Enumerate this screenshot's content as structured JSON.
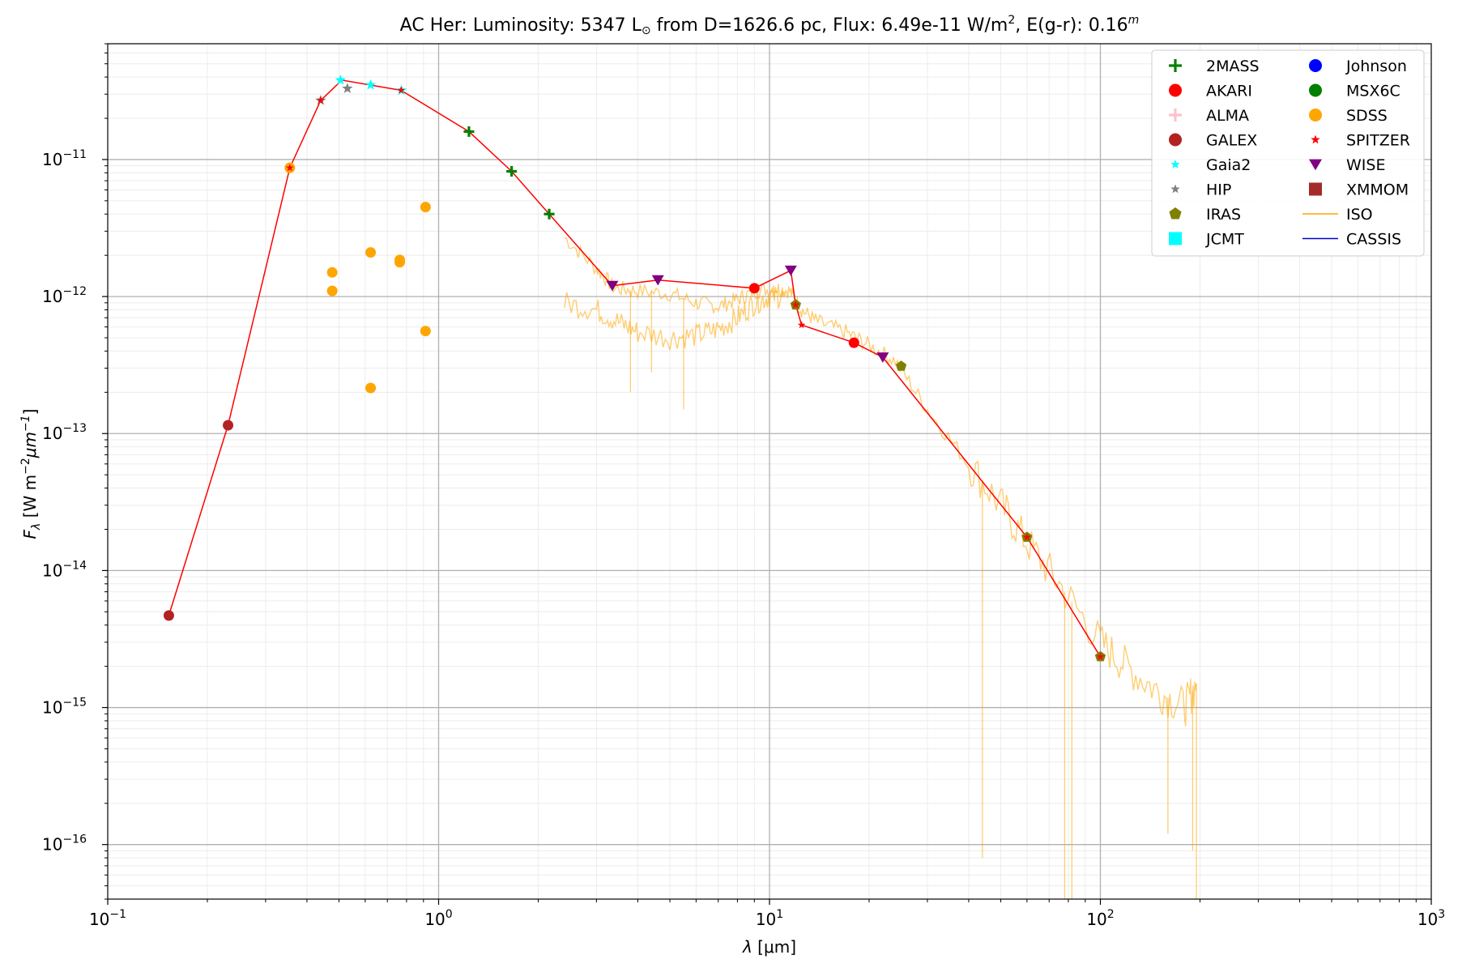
{
  "chart_data": {
    "type": "scatter",
    "title": {
      "prefix": "AC Her:  Luminosity: 5347 L",
      "sun_symbol": "⊙",
      "middle": " from D=1626.6 pc, Flux: 6.49e-11 W/m",
      "sup1": "2",
      "after": ", E(g-r): 0.16",
      "sup2": "m"
    },
    "xlabel": {
      "sym": "λ",
      "unit": " [μm]"
    },
    "ylabel": {
      "main": "F",
      "sub": "λ",
      "unit": " [W m",
      "exp1": "−2",
      "mid": "μm",
      "exp2": "−1",
      "close": "]"
    },
    "x_scale": "log",
    "y_scale": "log",
    "xlim": [
      0.1,
      1000
    ],
    "ylim": [
      4e-17,
      7e-11
    ],
    "x_ticks": [
      {
        "value": 0.1,
        "base": "10",
        "exp": "−1"
      },
      {
        "value": 1,
        "base": "10",
        "exp": "0"
      },
      {
        "value": 10,
        "base": "10",
        "exp": "1"
      },
      {
        "value": 100,
        "base": "10",
        "exp": "2"
      },
      {
        "value": 1000,
        "base": "10",
        "exp": "3"
      }
    ],
    "y_ticks": [
      {
        "value": 1e-16,
        "base": "10",
        "exp": "−16"
      },
      {
        "value": 1e-15,
        "base": "10",
        "exp": "−15"
      },
      {
        "value": 1e-14,
        "base": "10",
        "exp": "−14"
      },
      {
        "value": 1e-13,
        "base": "10",
        "exp": "−13"
      },
      {
        "value": 1e-12,
        "base": "10",
        "exp": "−12"
      },
      {
        "value": 1e-11,
        "base": "10",
        "exp": "−11"
      }
    ],
    "grid": true,
    "legend_position": "top-right",
    "legend": [
      {
        "name": "2MASS",
        "color": "#008000",
        "marker": "plus"
      },
      {
        "name": "AKARI",
        "color": "#ff0000",
        "marker": "circle"
      },
      {
        "name": "ALMA",
        "color": "#ffc0cb",
        "marker": "plus"
      },
      {
        "name": "GALEX",
        "color": "#b22222",
        "marker": "circle"
      },
      {
        "name": "Gaia2",
        "color": "#00ffff",
        "marker": "star"
      },
      {
        "name": "HIP",
        "color": "#808080",
        "marker": "star"
      },
      {
        "name": "IRAS",
        "color": "#808000",
        "marker": "pentagon"
      },
      {
        "name": "JCMT",
        "color": "#00ffff",
        "marker": "square"
      },
      {
        "name": "Johnson",
        "color": "#0000ff",
        "marker": "circle"
      },
      {
        "name": "MSX6C",
        "color": "#008000",
        "marker": "circle"
      },
      {
        "name": "SDSS",
        "color": "#ffa500",
        "marker": "circle"
      },
      {
        "name": "SPITZER",
        "color": "#ff0000",
        "marker": "star"
      },
      {
        "name": "WISE",
        "color": "#800080",
        "marker": "triangle-down"
      },
      {
        "name": "XMMOM",
        "color": "#a52a2a",
        "marker": "square"
      },
      {
        "name": "ISO",
        "color": "#ffa500",
        "marker": "line"
      },
      {
        "name": "CASSIS",
        "color": "#0000cd",
        "marker": "line"
      }
    ],
    "sed_line": {
      "color": "#ff0000",
      "points": [
        [
          0.153,
          4.7e-15
        ],
        [
          0.231,
          1.15e-13
        ],
        [
          0.355,
          8.7e-12
        ],
        [
          0.44,
          2.7e-11
        ],
        [
          0.51,
          3.8e-11
        ],
        [
          0.77,
          3.2e-11
        ],
        [
          1.235,
          1.6e-11
        ],
        [
          1.662,
          8.2e-12
        ],
        [
          2.159,
          4e-12
        ],
        [
          3.35,
          1.2e-12
        ],
        [
          4.6,
          1.32e-12
        ],
        [
          9.0,
          1.15e-12
        ],
        [
          11.6,
          1.55e-12
        ],
        [
          12.0,
          8.7e-13
        ],
        [
          12.5,
          6.2e-13
        ],
        [
          18.0,
          4.6e-13
        ],
        [
          22.0,
          3.6e-13
        ],
        [
          60.0,
          1.75e-14
        ],
        [
          100.0,
          2.35e-15
        ]
      ]
    },
    "photometry": [
      {
        "survey": "GALEX",
        "color": "#b22222",
        "marker": "circle",
        "points": [
          [
            0.153,
            4.7e-15
          ],
          [
            0.231,
            1.15e-13
          ]
        ]
      },
      {
        "survey": "SDSS",
        "color": "#ffa500",
        "marker": "circle",
        "points": [
          [
            0.355,
            8.7e-12
          ],
          [
            0.477,
            1.5e-12
          ],
          [
            0.477,
            1.1e-12
          ],
          [
            0.623,
            2.1e-12
          ],
          [
            0.623,
            2.15e-13
          ],
          [
            0.763,
            1.85e-12
          ],
          [
            0.763,
            1.78e-12
          ],
          [
            0.913,
            4.5e-12
          ],
          [
            0.913,
            5.6e-13
          ]
        ]
      },
      {
        "survey": "HIP",
        "color": "#808080",
        "marker": "star",
        "points": [
          [
            0.44,
            2.7e-11
          ],
          [
            0.53,
            3.3e-11
          ]
        ]
      },
      {
        "survey": "Gaia2",
        "color": "#00ffff",
        "marker": "star",
        "points": [
          [
            0.505,
            3.8e-11
          ],
          [
            0.623,
            3.5e-11
          ],
          [
            0.772,
            3.2e-11
          ]
        ]
      },
      {
        "survey": "2MASS",
        "color": "#008000",
        "marker": "plus",
        "points": [
          [
            1.235,
            1.6e-11
          ],
          [
            1.662,
            8.2e-12
          ],
          [
            2.159,
            4e-12
          ]
        ]
      },
      {
        "survey": "WISE",
        "color": "#800080",
        "marker": "triangle-down",
        "points": [
          [
            3.35,
            1.2e-12
          ],
          [
            4.6,
            1.32e-12
          ],
          [
            11.6,
            1.55e-12
          ],
          [
            22.0,
            3.6e-13
          ]
        ]
      },
      {
        "survey": "AKARI",
        "color": "#ff0000",
        "marker": "circle",
        "points": [
          [
            9.0,
            1.15e-12
          ],
          [
            18.0,
            4.6e-13
          ]
        ]
      },
      {
        "survey": "IRAS",
        "color": "#808000",
        "marker": "pentagon",
        "points": [
          [
            12.0,
            8.7e-13
          ],
          [
            25.0,
            3.1e-13
          ],
          [
            60.0,
            1.75e-14
          ],
          [
            100.0,
            2.35e-15
          ]
        ]
      },
      {
        "survey": "SPITZER",
        "color": "#ff0000",
        "marker": "star",
        "points": [
          [
            0.44,
            2.7e-11
          ],
          [
            0.77,
            3.2e-11
          ],
          [
            12.0,
            8.7e-13
          ],
          [
            12.5,
            6.2e-13
          ],
          [
            60.0,
            1.75e-14
          ],
          [
            100.0,
            2.35e-15
          ],
          [
            0.355,
            8.7e-12
          ]
        ]
      }
    ],
    "iso_spectrum": {
      "color": "#ffa500",
      "envelope": [
        [
          2.4,
          2.7e-12
        ],
        [
          3.0,
          1.6e-12
        ],
        [
          3.4,
          1.15e-12
        ],
        [
          4.0,
          1.1e-12
        ],
        [
          5.0,
          1.05e-12
        ],
        [
          6.0,
          9e-13
        ],
        [
          7.0,
          8.5e-13
        ],
        [
          8.0,
          9.5e-13
        ],
        [
          9.0,
          1.1e-12
        ],
        [
          10.5,
          1.15e-12
        ],
        [
          11.5,
          1.1e-12
        ],
        [
          12.5,
          8e-13
        ],
        [
          14.0,
          6.5e-13
        ],
        [
          17.0,
          5.5e-13
        ],
        [
          20.0,
          4.4e-13
        ],
        [
          24.0,
          3.4e-13
        ],
        [
          30.0,
          1.5e-13
        ],
        [
          40.0,
          6e-14
        ],
        [
          50.0,
          3e-14
        ],
        [
          60.0,
          1.6e-14
        ],
        [
          75.0,
          8e-15
        ],
        [
          100.0,
          3e-15
        ],
        [
          120.0,
          2e-15
        ],
        [
          150.0,
          1.3e-15
        ],
        [
          180.0,
          1e-15
        ],
        [
          195.0,
          1.5e-15
        ]
      ],
      "lower_branch": [
        [
          2.4,
          9e-13
        ],
        [
          3.0,
          8e-13
        ],
        [
          3.5,
          6.5e-13
        ],
        [
          4.0,
          5.5e-13
        ],
        [
          5.0,
          5e-13
        ],
        [
          6.0,
          5.2e-13
        ],
        [
          7.0,
          5.8e-13
        ],
        [
          8.0,
          7e-13
        ],
        [
          9.0,
          9e-13
        ],
        [
          10.0,
          1e-12
        ],
        [
          11.0,
          1e-12
        ]
      ],
      "dips": [
        [
          3.8,
          2e-13
        ],
        [
          4.4,
          2.8e-13
        ],
        [
          5.5,
          1.5e-13
        ],
        [
          44.0,
          8e-17
        ],
        [
          78.0,
          4e-17
        ],
        [
          82.0,
          4e-17
        ],
        [
          160.0,
          1.2e-16
        ],
        [
          190.0,
          9e-17
        ],
        [
          195.0,
          4e-17
        ]
      ]
    }
  }
}
